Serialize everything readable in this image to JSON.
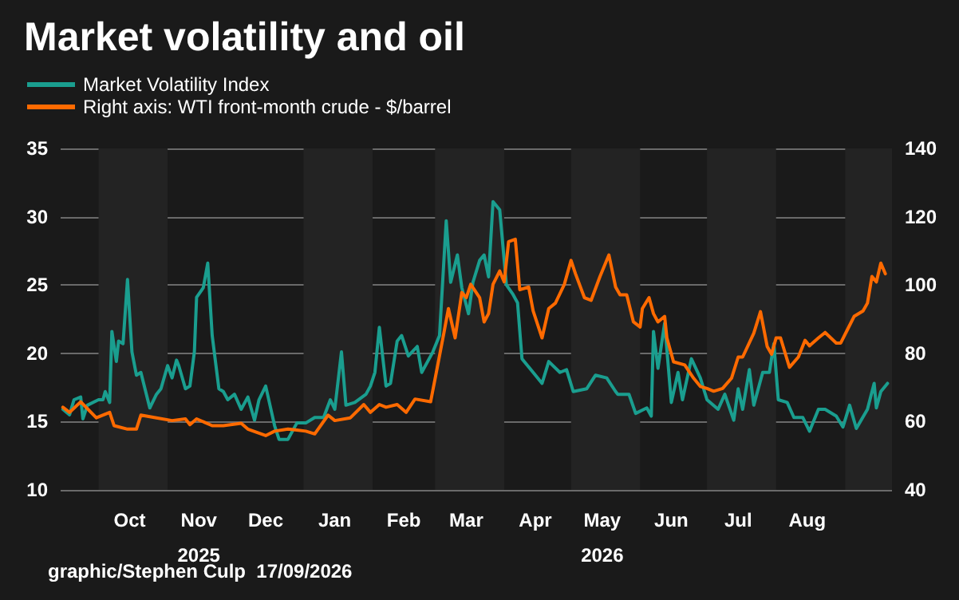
{
  "chart_data": {
    "type": "line",
    "title": "Market volatility and oil",
    "annotations": [
      "graphic/Stephen Culp  17/09/2026"
    ],
    "xlim": [
      "2025-09-14",
      "2026-09-22"
    ],
    "xticks": [
      {
        "value": "2025-10-15",
        "label": "Oct"
      },
      {
        "value": "2025-11-15",
        "label": "Nov\n2025"
      },
      {
        "value": "2025-12-15",
        "label": "Dec"
      },
      {
        "value": "2026-01-15",
        "label": "Jan"
      },
      {
        "value": "2026-02-15",
        "label": "Feb"
      },
      {
        "value": "2026-03-15",
        "label": "Mar"
      },
      {
        "value": "2026-04-15",
        "label": "Apr"
      },
      {
        "value": "2026-05-15",
        "label": "May\n2026"
      },
      {
        "value": "2026-06-15",
        "label": "Jun"
      },
      {
        "value": "2026-07-15",
        "label": "Jul"
      },
      {
        "value": "2026-08-15",
        "label": "Aug"
      }
    ],
    "ylim": [
      10,
      35
    ],
    "yticks": [
      10,
      15,
      20,
      25,
      30,
      35
    ],
    "y2lim": [
      40,
      140
    ],
    "y2ticks": [
      40,
      60,
      80,
      100,
      120,
      140
    ],
    "grid": "y",
    "legend": "top left",
    "marker": "none",
    "line_style": "solid",
    "bands": [
      {
        "axis": "x",
        "from": "2025-10-01",
        "to": "2025-11-01",
        "color": "#232323"
      },
      {
        "axis": "x",
        "from": "2026-01-01",
        "to": "2026-02-01",
        "color": "#232323"
      },
      {
        "axis": "x",
        "from": "2026-03-01",
        "to": "2026-04-01",
        "color": "#232323"
      },
      {
        "axis": "x",
        "from": "2026-05-01",
        "to": "2026-06-01",
        "color": "#232323"
      },
      {
        "axis": "x",
        "from": "2026-07-01",
        "to": "2026-08-01",
        "color": "#232323"
      },
      {
        "axis": "x",
        "from": "2026-09-01",
        "to": "2026-09-22",
        "color": "#232323"
      }
    ],
    "series": [
      {
        "name": "Market Volatility Index",
        "color": "#1a9e8f",
        "x": [
          "2025-09-15",
          "2025-09-18",
          "2025-09-20",
          "2025-09-23",
          "2025-09-24",
          "2025-09-26",
          "2025-10-01",
          "2025-10-03",
          "2025-10-04",
          "2025-10-06",
          "2025-10-07",
          "2025-10-09",
          "2025-10-10",
          "2025-10-12",
          "2025-10-14",
          "2025-10-16",
          "2025-10-18",
          "2025-10-20",
          "2025-10-24",
          "2025-10-27",
          "2025-10-29",
          "2025-11-01",
          "2025-11-03",
          "2025-11-05",
          "2025-11-06",
          "2025-11-09",
          "2025-11-11",
          "2025-11-13",
          "2025-11-14",
          "2025-11-17",
          "2025-11-19",
          "2025-11-21",
          "2025-11-24",
          "2025-11-26",
          "2025-11-28",
          "2025-12-01",
          "2025-12-04",
          "2025-12-07",
          "2025-12-10",
          "2025-12-12",
          "2025-12-15",
          "2025-12-19",
          "2025-12-21",
          "2025-12-25",
          "2025-12-29",
          "2026-01-02",
          "2026-01-06",
          "2026-01-10",
          "2026-01-13",
          "2026-01-15",
          "2026-01-18",
          "2026-01-20",
          "2026-01-24",
          "2026-01-29",
          "2026-01-31",
          "2026-02-02",
          "2026-02-04",
          "2026-02-07",
          "2026-02-09",
          "2026-02-12",
          "2026-02-14",
          "2026-02-17",
          "2026-02-21",
          "2026-02-23",
          "2026-02-28",
          "2026-03-03",
          "2026-03-06",
          "2026-03-08",
          "2026-03-11",
          "2026-03-13",
          "2026-03-16",
          "2026-03-18",
          "2026-03-21",
          "2026-03-23",
          "2026-03-25",
          "2026-03-27",
          "2026-03-30",
          "2026-04-02",
          "2026-04-05",
          "2026-04-07",
          "2026-04-09",
          "2026-04-14",
          "2026-04-18",
          "2026-04-21",
          "2026-04-26",
          "2026-04-29",
          "2026-05-02",
          "2026-05-08",
          "2026-05-12",
          "2026-05-17",
          "2026-05-21",
          "2026-05-22",
          "2026-05-27",
          "2026-05-30",
          "2026-06-04",
          "2026-06-06",
          "2026-06-07",
          "2026-06-09",
          "2026-06-12",
          "2026-06-15",
          "2026-06-18",
          "2026-06-20",
          "2026-06-24",
          "2026-06-28",
          "2026-07-01",
          "2026-07-06",
          "2026-07-09",
          "2026-07-13",
          "2026-07-15",
          "2026-07-17",
          "2026-07-20",
          "2026-07-22",
          "2026-07-26",
          "2026-07-29",
          "2026-07-31",
          "2026-08-02",
          "2026-08-06",
          "2026-08-09",
          "2026-08-13",
          "2026-08-16",
          "2026-08-20",
          "2026-08-23",
          "2026-08-28",
          "2026-08-31",
          "2026-09-03",
          "2026-09-06",
          "2026-09-11",
          "2026-09-14",
          "2026-09-15",
          "2026-09-17",
          "2026-09-20"
        ],
        "values": [
          15.9,
          15.5,
          16.6,
          16.8,
          15.2,
          16.2,
          16.6,
          16.6,
          17.2,
          16.4,
          21.6,
          19.4,
          20.9,
          20.7,
          25.4,
          20.1,
          18.4,
          18.6,
          16.0,
          17.0,
          17.4,
          19.1,
          18.2,
          19.5,
          19.1,
          17.4,
          17.6,
          20.1,
          24.1,
          24.8,
          26.6,
          21.3,
          17.4,
          17.2,
          16.6,
          17.0,
          15.9,
          16.8,
          15.1,
          16.6,
          17.6,
          14.7,
          13.7,
          13.7,
          14.9,
          14.9,
          15.3,
          15.3,
          16.6,
          15.9,
          20.1,
          16.2,
          16.4,
          17.0,
          17.6,
          18.6,
          21.9,
          17.6,
          17.8,
          20.9,
          21.3,
          19.8,
          20.5,
          18.6,
          20.1,
          21.3,
          29.7,
          25.2,
          27.2,
          24.8,
          22.9,
          25.2,
          26.8,
          27.2,
          25.6,
          31.1,
          30.5,
          25.0,
          24.3,
          23.7,
          19.6,
          18.6,
          17.8,
          19.4,
          18.6,
          18.8,
          17.2,
          17.4,
          18.4,
          18.2,
          17.2,
          17.0,
          17.0,
          15.6,
          16.0,
          15.4,
          21.6,
          18.9,
          22.2,
          16.4,
          18.6,
          16.6,
          19.6,
          18.2,
          16.6,
          15.9,
          17.0,
          15.1,
          17.4,
          15.9,
          18.8,
          16.2,
          18.6,
          18.6,
          20.7,
          16.6,
          16.4,
          15.3,
          15.3,
          14.3,
          15.9,
          15.9,
          15.4,
          14.6,
          16.2,
          14.5,
          15.9,
          17.8,
          16.0,
          17.2,
          17.8
        ]
      },
      {
        "name": "Right axis: WTI front-month crude - $/barrel",
        "color": "#ff6a00",
        "axis": "y2",
        "x": [
          "2025-09-15",
          "2025-09-18",
          "2025-09-23",
          "2025-09-30",
          "2025-10-06",
          "2025-10-08",
          "2025-10-14",
          "2025-10-18",
          "2025-10-20",
          "2025-10-27",
          "2025-11-03",
          "2025-11-09",
          "2025-11-11",
          "2025-11-14",
          "2025-11-21",
          "2025-11-26",
          "2025-12-04",
          "2025-12-07",
          "2025-12-15",
          "2025-12-19",
          "2025-12-25",
          "2025-12-29",
          "2026-01-02",
          "2026-01-06",
          "2026-01-12",
          "2026-01-15",
          "2026-01-22",
          "2026-01-28",
          "2026-01-31",
          "2026-02-04",
          "2026-02-07",
          "2026-02-12",
          "2026-02-16",
          "2026-02-20",
          "2026-02-27",
          "2026-03-02",
          "2026-03-05",
          "2026-03-07",
          "2026-03-10",
          "2026-03-13",
          "2026-03-15",
          "2026-03-17",
          "2026-03-21",
          "2026-03-23",
          "2026-03-25",
          "2026-03-27",
          "2026-03-30",
          "2026-04-01",
          "2026-04-03",
          "2026-04-06",
          "2026-04-08",
          "2026-04-12",
          "2026-04-14",
          "2026-04-18",
          "2026-04-21",
          "2026-04-24",
          "2026-04-28",
          "2026-05-01",
          "2026-05-03",
          "2026-05-07",
          "2026-05-10",
          "2026-05-14",
          "2026-05-18",
          "2026-05-21",
          "2026-05-23",
          "2026-05-26",
          "2026-05-29",
          "2026-06-01",
          "2026-06-02",
          "2026-06-05",
          "2026-06-07",
          "2026-06-09",
          "2026-06-12",
          "2026-06-13",
          "2026-06-16",
          "2026-06-21",
          "2026-06-25",
          "2026-06-28",
          "2026-07-01",
          "2026-07-04",
          "2026-07-08",
          "2026-07-12",
          "2026-07-15",
          "2026-07-17",
          "2026-07-22",
          "2026-07-25",
          "2026-07-28",
          "2026-07-30",
          "2026-08-01",
          "2026-08-03",
          "2026-08-07",
          "2026-08-11",
          "2026-08-14",
          "2026-08-16",
          "2026-08-20",
          "2026-08-23",
          "2026-08-28",
          "2026-08-30",
          "2026-09-02",
          "2026-09-05",
          "2026-09-09",
          "2026-09-11",
          "2026-09-13",
          "2026-09-15",
          "2026-09-17",
          "2026-09-19"
        ],
        "values": [
          64.2,
          62.7,
          65.8,
          61.1,
          62.7,
          58.8,
          57.8,
          57.8,
          61.9,
          61.1,
          60.3,
          60.8,
          59.1,
          60.8,
          58.8,
          58.8,
          59.5,
          57.8,
          55.9,
          57.2,
          57.8,
          57.5,
          57.2,
          56.4,
          61.9,
          60.3,
          61.1,
          65.0,
          62.7,
          65.0,
          64.2,
          65.0,
          62.7,
          66.6,
          65.8,
          75.9,
          86.1,
          93.1,
          84.5,
          97.8,
          96.3,
          100.2,
          96.3,
          89.2,
          91.6,
          100.2,
          104.1,
          100.9,
          112.7,
          113.4,
          98.6,
          99.4,
          92.4,
          84.5,
          93.1,
          94.7,
          100.2,
          107.2,
          103.3,
          96.3,
          95.5,
          102.5,
          108.8,
          99.4,
          97.1,
          97.1,
          89.2,
          87.7,
          93.1,
          96.3,
          91.6,
          89.2,
          90.8,
          84.5,
          77.5,
          76.6,
          72.7,
          70.3,
          69.7,
          68.9,
          69.7,
          72.7,
          78.9,
          78.9,
          85.9,
          92.2,
          82.0,
          79.7,
          84.5,
          84.5,
          75.9,
          78.9,
          83.8,
          82.2,
          84.5,
          86.1,
          83.0,
          83.0,
          86.9,
          90.8,
          92.4,
          94.7,
          102.5,
          100.9,
          106.4,
          103.3
        ]
      }
    ]
  }
}
